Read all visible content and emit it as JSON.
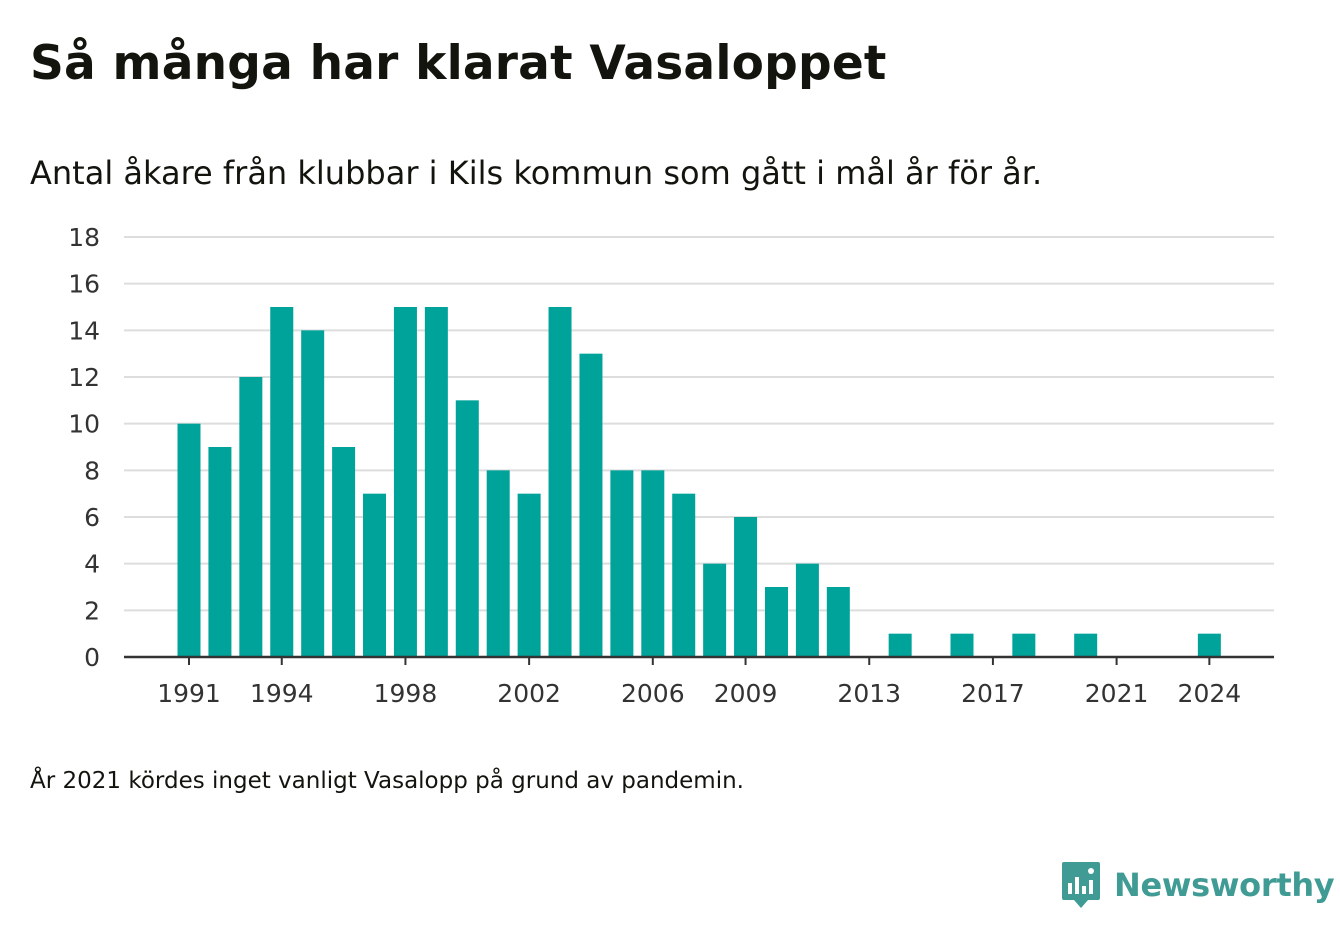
{
  "header": {
    "title": "Så många har klarat Vasaloppet",
    "subtitle": "Antal åkare från klubbar i Kils kommun som gått i mål år för år."
  },
  "footer": {
    "note": "År 2021 kördes inget vanligt Vasalopp på grund av pandemin.",
    "brand": "Newsworthy"
  },
  "colors": {
    "bar": "#00a39a",
    "grid": "#dddddd",
    "axis": "#333333",
    "brand": "#3f9b94"
  },
  "chart_data": {
    "type": "bar",
    "title": "Så många har klarat Vasaloppet",
    "subtitle": "Antal åkare från klubbar i Kils kommun som gått i mål år för år.",
    "categories": [
      1991,
      1992,
      1993,
      1994,
      1995,
      1996,
      1997,
      1998,
      1999,
      2000,
      2001,
      2002,
      2003,
      2004,
      2005,
      2006,
      2007,
      2008,
      2009,
      2010,
      2011,
      2012,
      2013,
      2014,
      2015,
      2016,
      2017,
      2018,
      2019,
      2020,
      2021,
      2022,
      2023,
      2024
    ],
    "values": [
      10,
      9,
      12,
      15,
      14,
      9,
      7,
      15,
      15,
      11,
      8,
      7,
      15,
      13,
      8,
      8,
      7,
      4,
      6,
      3,
      4,
      3,
      0,
      1,
      0,
      1,
      0,
      1,
      0,
      1,
      0,
      0,
      0,
      1
    ],
    "x_tick_labels": [
      "1991",
      "1994",
      "1998",
      "2002",
      "2006",
      "2009",
      "2013",
      "2017",
      "2021",
      "2024"
    ],
    "y_ticks": [
      0,
      2,
      4,
      6,
      8,
      10,
      12,
      14,
      16,
      18
    ],
    "ylim": [
      0,
      18
    ],
    "xlabel": "",
    "ylabel": "",
    "grid": true,
    "legend": "none"
  }
}
